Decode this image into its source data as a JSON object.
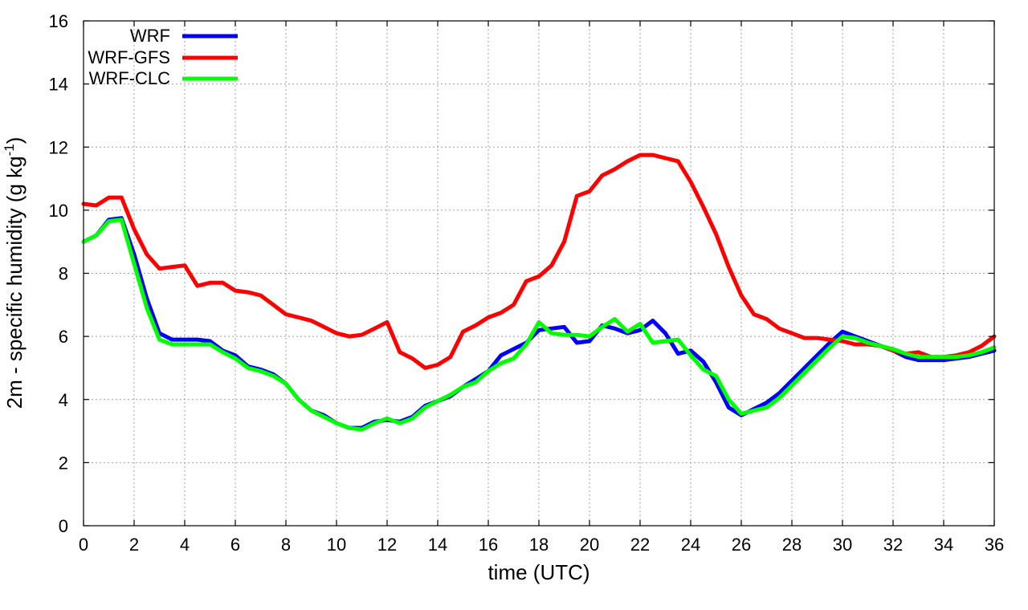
{
  "chart_data": {
    "type": "line",
    "xlabel": "time (UTC)",
    "ylabel_text": "2m - specific humidity (g kg",
    "ylabel_sup": "-1",
    "ylabel_close": ")",
    "xlim": [
      0,
      36
    ],
    "ylim": [
      0,
      16
    ],
    "xticks": [
      0,
      2,
      4,
      6,
      8,
      10,
      12,
      14,
      16,
      18,
      20,
      22,
      24,
      26,
      28,
      30,
      32,
      34,
      36
    ],
    "yticks": [
      0,
      2,
      4,
      6,
      8,
      10,
      12,
      14,
      16
    ],
    "grid": true,
    "legend_position": "top-left",
    "series": [
      {
        "name": "WRF",
        "color": "#0000ff",
        "x": [
          0,
          0.5,
          1,
          1.5,
          2,
          2.5,
          3,
          3.5,
          4,
          4.5,
          5,
          5.5,
          6,
          6.5,
          7,
          7.5,
          8,
          8.5,
          9,
          9.5,
          10,
          10.5,
          11,
          11.5,
          12,
          12.5,
          13,
          13.5,
          14,
          14.5,
          15,
          15.5,
          16,
          16.5,
          17,
          17.5,
          18,
          18.5,
          19,
          19.5,
          20,
          20.5,
          21,
          21.5,
          22,
          22.5,
          23,
          23.5,
          24,
          24.5,
          25,
          25.5,
          26,
          26.5,
          27,
          27.5,
          28,
          28.5,
          29,
          29.5,
          30,
          30.5,
          31,
          31.5,
          32,
          32.5,
          33,
          33.5,
          34,
          34.5,
          35,
          35.5,
          36
        ],
        "y": [
          9.0,
          9.2,
          9.7,
          9.75,
          8.6,
          7.2,
          6.1,
          5.9,
          5.9,
          5.9,
          5.85,
          5.55,
          5.4,
          5.05,
          4.95,
          4.8,
          4.5,
          4.0,
          3.65,
          3.5,
          3.25,
          3.1,
          3.1,
          3.3,
          3.35,
          3.3,
          3.45,
          3.8,
          3.95,
          4.1,
          4.4,
          4.65,
          4.9,
          5.4,
          5.6,
          5.8,
          6.2,
          6.25,
          6.3,
          5.8,
          5.85,
          6.35,
          6.25,
          6.1,
          6.2,
          6.5,
          6.1,
          5.45,
          5.55,
          5.2,
          4.55,
          3.75,
          3.5,
          3.7,
          3.9,
          4.2,
          4.6,
          5.0,
          5.4,
          5.8,
          6.15,
          6.0,
          5.85,
          5.7,
          5.55,
          5.35,
          5.25,
          5.25,
          5.25,
          5.3,
          5.35,
          5.45,
          5.55
        ]
      },
      {
        "name": "WRF-GFS",
        "color": "#ff0000",
        "x": [
          0,
          0.5,
          1,
          1.5,
          2,
          2.5,
          3,
          3.5,
          4,
          4.5,
          5,
          5.5,
          6,
          6.5,
          7,
          7.5,
          8,
          8.5,
          9,
          9.5,
          10,
          10.5,
          11,
          11.5,
          12,
          12.5,
          13,
          13.5,
          14,
          14.5,
          15,
          15.5,
          16,
          16.5,
          17,
          17.5,
          18,
          18.5,
          19,
          19.5,
          20,
          20.5,
          21,
          21.5,
          22,
          22.5,
          23,
          23.5,
          24,
          24.5,
          25,
          25.5,
          26,
          26.5,
          27,
          27.5,
          28,
          28.5,
          29,
          29.5,
          30,
          30.5,
          31,
          31.5,
          32,
          32.5,
          33,
          33.5,
          34,
          34.5,
          35,
          35.5,
          36
        ],
        "y": [
          10.2,
          10.15,
          10.4,
          10.4,
          9.4,
          8.6,
          8.15,
          8.2,
          8.25,
          7.6,
          7.7,
          7.7,
          7.45,
          7.4,
          7.3,
          7.0,
          6.7,
          6.6,
          6.5,
          6.3,
          6.1,
          6.0,
          6.05,
          6.25,
          6.45,
          5.5,
          5.3,
          5.0,
          5.1,
          5.35,
          6.15,
          6.35,
          6.6,
          6.75,
          7.0,
          7.75,
          7.9,
          8.25,
          9.0,
          10.45,
          10.6,
          11.1,
          11.3,
          11.55,
          11.75,
          11.75,
          11.65,
          11.55,
          10.9,
          10.1,
          9.25,
          8.2,
          7.3,
          6.7,
          6.55,
          6.25,
          6.1,
          5.95,
          5.95,
          5.9,
          5.85,
          5.75,
          5.75,
          5.7,
          5.55,
          5.45,
          5.5,
          5.35,
          5.35,
          5.4,
          5.5,
          5.7,
          6.0
        ]
      },
      {
        "name": "WRF-CLC",
        "color": "#00ff00",
        "x": [
          0,
          0.5,
          1,
          1.5,
          2,
          2.5,
          3,
          3.5,
          4,
          4.5,
          5,
          5.5,
          6,
          6.5,
          7,
          7.5,
          8,
          8.5,
          9,
          9.5,
          10,
          10.5,
          11,
          11.5,
          12,
          12.5,
          13,
          13.5,
          14,
          14.5,
          15,
          15.5,
          16,
          16.5,
          17,
          17.5,
          18,
          18.5,
          19,
          19.5,
          20,
          20.5,
          21,
          21.5,
          22,
          22.5,
          23,
          23.5,
          24,
          24.5,
          25,
          25.5,
          26,
          26.5,
          27,
          27.5,
          28,
          28.5,
          29,
          29.5,
          30,
          30.5,
          31,
          31.5,
          32,
          32.5,
          33,
          33.5,
          34,
          34.5,
          35,
          35.5,
          36
        ],
        "y": [
          9.0,
          9.2,
          9.65,
          9.7,
          8.3,
          6.9,
          5.9,
          5.75,
          5.75,
          5.75,
          5.75,
          5.5,
          5.3,
          5.0,
          4.9,
          4.75,
          4.5,
          4.0,
          3.65,
          3.45,
          3.25,
          3.1,
          3.05,
          3.25,
          3.4,
          3.25,
          3.4,
          3.75,
          3.95,
          4.15,
          4.4,
          4.55,
          4.9,
          5.15,
          5.3,
          5.75,
          6.45,
          6.1,
          6.05,
          6.05,
          6.0,
          6.3,
          6.55,
          6.15,
          6.4,
          5.8,
          5.85,
          5.9,
          5.4,
          4.95,
          4.75,
          4.0,
          3.55,
          3.65,
          3.75,
          4.05,
          4.45,
          4.85,
          5.25,
          5.65,
          6.0,
          5.95,
          5.8,
          5.7,
          5.6,
          5.45,
          5.35,
          5.35,
          5.35,
          5.35,
          5.4,
          5.5,
          5.65
        ]
      }
    ]
  }
}
